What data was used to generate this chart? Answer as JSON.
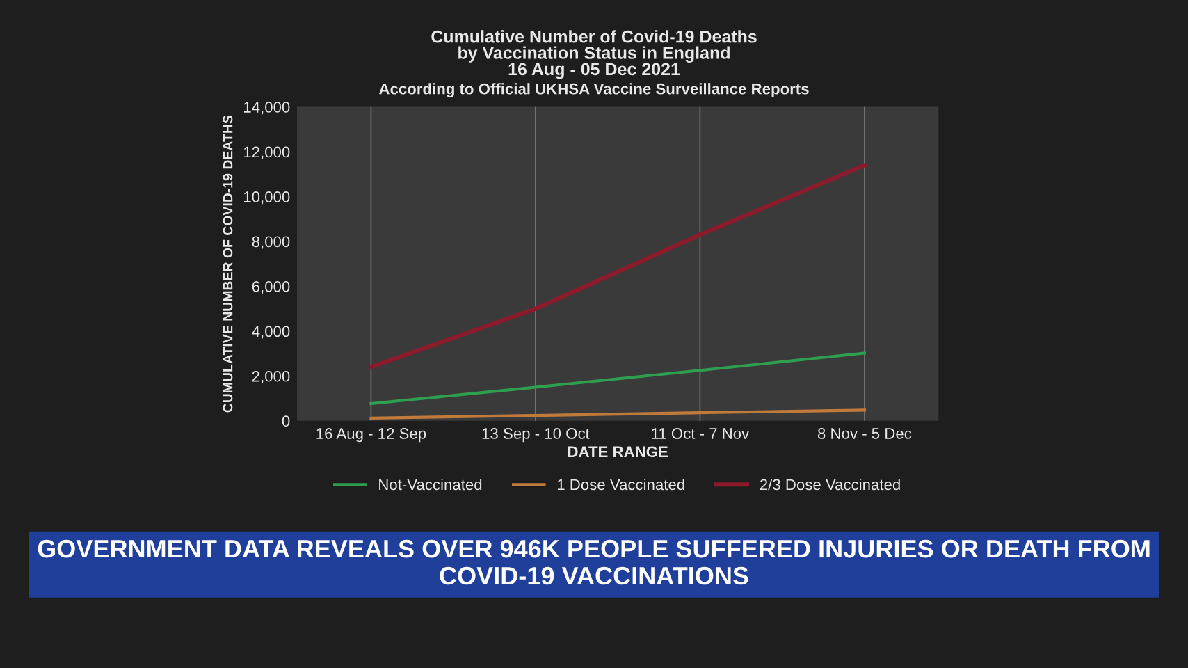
{
  "chart_data": {
    "type": "line",
    "title": "Cumulative Number of Covid-19 Deaths\nby Vaccination Status in England\n16 Aug - 05 Dec 2021",
    "subtitle": "According to Official UKHSA Vaccine Surveillance Reports",
    "xlabel": "DATE RANGE",
    "ylabel": "CUMULATIVE NUMBER OF COVID-19 DEATHS",
    "categories": [
      "16 Aug - 12 Sep",
      "13 Sep - 10 Oct",
      "11 Oct - 7 Nov",
      "8 Nov - 5 Dec"
    ],
    "series": [
      {
        "name": "Not-Vaccinated",
        "color": "#2e9e4f",
        "values": [
          770,
          1500,
          2250,
          3020
        ]
      },
      {
        "name": "1 Dose Vaccinated",
        "color": "#c07a3a",
        "values": [
          120,
          240,
          360,
          480
        ]
      },
      {
        "name": "2/3 Dose Vaccinated",
        "color": "#8b1a2b",
        "values": [
          2400,
          5000,
          8300,
          11400
        ]
      }
    ],
    "ylim": [
      0,
      14000
    ],
    "yticks": [
      {
        "value": 0,
        "label": "0"
      },
      {
        "value": 2000,
        "label": "2,000"
      },
      {
        "value": 4000,
        "label": "4,000"
      },
      {
        "value": 6000,
        "label": "6,000"
      },
      {
        "value": 8000,
        "label": "8,000"
      },
      {
        "value": 10000,
        "label": "10,000"
      },
      {
        "value": 12000,
        "label": "12,000"
      },
      {
        "value": 14000,
        "label": "14,000"
      }
    ],
    "grid": "x",
    "legend": "bottom",
    "marker": "none",
    "line_style": "solid",
    "annotations": [
      "GOVERNMENT DATA REVEALS OVER 946K PEOPLE SUFFERED INJURIES OR DEATH FROM COVID-19 VACCINATIONS"
    ]
  }
}
